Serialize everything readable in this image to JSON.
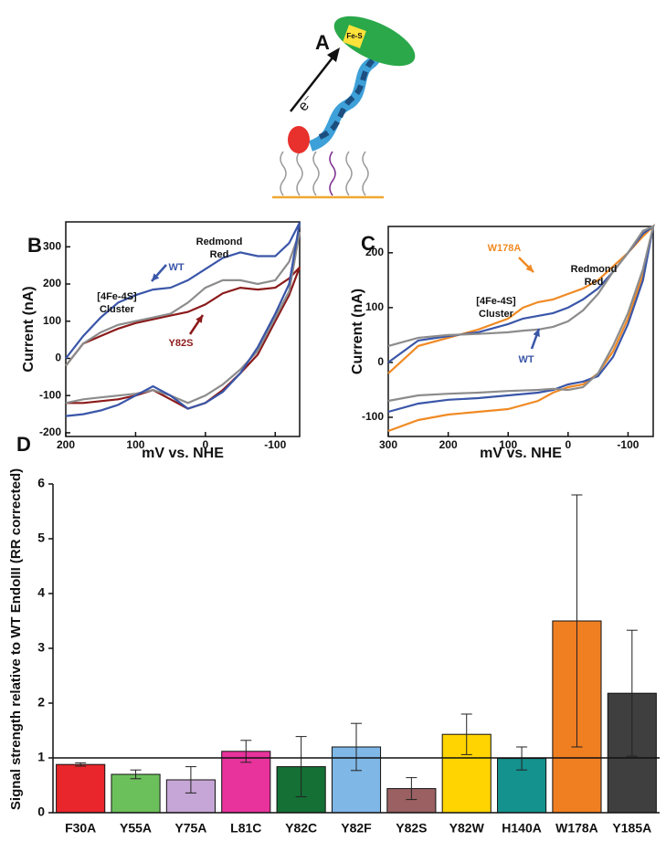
{
  "diagram": {
    "label": "A",
    "electron": "e⁻",
    "cluster": "Fe-S"
  },
  "chart_data": [
    {
      "type": "line",
      "panel_label": "B",
      "x_label": "mV vs. NHE",
      "y_label": "Current (nA)",
      "x": [
        200,
        175,
        150,
        125,
        100,
        75,
        50,
        25,
        0,
        -25,
        -50,
        -75,
        -100,
        -120,
        -135,
        -120,
        -100,
        -75,
        -50,
        -25,
        0,
        25,
        50,
        75,
        100,
        125,
        150,
        175,
        200
      ],
      "xlim": [
        200,
        -135
      ],
      "xticks": [
        200,
        100,
        0,
        -100
      ],
      "ylim": [
        -210,
        367
      ],
      "yticks": [
        -200,
        -100,
        0,
        100,
        200,
        300
      ],
      "series": [
        {
          "name": "Y82S",
          "color": "#8b1a1a",
          "values": [
            -20,
            40,
            60,
            80,
            95,
            105,
            115,
            125,
            145,
            175,
            190,
            185,
            190,
            215,
            245,
            170,
            100,
            10,
            -40,
            -85,
            -120,
            -135,
            -110,
            -85,
            -100,
            -110,
            -115,
            -120,
            -120
          ]
        },
        {
          "name": "Gray",
          "color": "#8c8c8c",
          "values": [
            -20,
            40,
            70,
            90,
            100,
            110,
            120,
            150,
            190,
            210,
            210,
            200,
            210,
            260,
            340,
            180,
            110,
            20,
            -30,
            -70,
            -100,
            -120,
            -100,
            -85,
            -95,
            -100,
            -105,
            -110,
            -120
          ]
        },
        {
          "name": "WT",
          "color": "#3a56a8",
          "values": [
            0,
            60,
            110,
            150,
            170,
            185,
            190,
            210,
            240,
            270,
            285,
            275,
            275,
            310,
            365,
            200,
            120,
            30,
            -40,
            -90,
            -120,
            -135,
            -100,
            -75,
            -100,
            -125,
            -140,
            -150,
            -155
          ]
        }
      ],
      "annotations": [
        {
          "lines": [
            "Redmond",
            "Red"
          ]
        },
        {
          "lines": [
            "WT"
          ],
          "color": "#3a56a8"
        },
        {
          "lines": [
            "[4Fe-4S]",
            "Cluster"
          ]
        },
        {
          "lines": [
            "Y82S"
          ],
          "color": "#8b1a1a"
        }
      ]
    },
    {
      "type": "line",
      "panel_label": "C",
      "x_label": "mV vs. NHE",
      "y_label": "Current (nA)",
      "x": [
        300,
        250,
        200,
        150,
        100,
        75,
        50,
        25,
        0,
        -25,
        -50,
        -75,
        -100,
        -125,
        -142,
        -125,
        -100,
        -75,
        -50,
        -25,
        0,
        25,
        50,
        100,
        150,
        200,
        250,
        300
      ],
      "xlim": [
        300,
        -142
      ],
      "xticks": [
        300,
        200,
        100,
        0,
        -100
      ],
      "ylim": [
        -135,
        248
      ],
      "yticks": [
        -100,
        0,
        100,
        200
      ],
      "series": [
        {
          "name": "W178A",
          "color": "#f08a24",
          "values": [
            -20,
            30,
            45,
            60,
            80,
            100,
            110,
            115,
            125,
            135,
            150,
            175,
            200,
            230,
            248,
            160,
            80,
            20,
            -20,
            -40,
            -45,
            -55,
            -70,
            -85,
            -90,
            -95,
            -105,
            -125
          ]
        },
        {
          "name": "WT",
          "color": "#3a56a8",
          "values": [
            0,
            40,
            48,
            55,
            70,
            80,
            85,
            90,
            100,
            115,
            135,
            165,
            200,
            235,
            248,
            150,
            70,
            10,
            -25,
            -35,
            -40,
            -50,
            -55,
            -60,
            -65,
            -68,
            -75,
            -90
          ]
        },
        {
          "name": "Gray",
          "color": "#8c8c8c",
          "values": [
            30,
            45,
            50,
            52,
            55,
            58,
            60,
            65,
            75,
            95,
            125,
            165,
            200,
            240,
            248,
            170,
            90,
            30,
            -20,
            -45,
            -50,
            -48,
            -50,
            -52,
            -55,
            -57,
            -60,
            -70
          ]
        }
      ],
      "annotations": [
        {
          "lines": [
            "W178A"
          ],
          "color": "#f08a24"
        },
        {
          "lines": [
            "Redmond",
            "Red"
          ]
        },
        {
          "lines": [
            "[4Fe-4S]",
            "Cluster"
          ]
        },
        {
          "lines": [
            "WT"
          ],
          "color": "#3a56a8"
        }
      ]
    },
    {
      "type": "bar",
      "panel_label": "D",
      "y_label": "Signal strength relative to WT EndoIII (RR corrected)",
      "categories": [
        "F30A",
        "Y55A",
        "Y75A",
        "L81C",
        "Y82C",
        "Y82F",
        "Y82S",
        "Y82W",
        "H140A",
        "W178A",
        "Y185A"
      ],
      "values": [
        0.88,
        0.7,
        0.6,
        1.12,
        0.84,
        1.2,
        0.44,
        1.43,
        0.99,
        3.5,
        2.18
      ],
      "errors": [
        0.03,
        0.08,
        0.24,
        0.2,
        0.55,
        0.43,
        0.2,
        0.37,
        0.21,
        2.3,
        1.15
      ],
      "colors": [
        "#e8262c",
        "#6cc05c",
        "#c6a6d6",
        "#e8339c",
        "#157036",
        "#7fb7e6",
        "#9a6062",
        "#ffd400",
        "#14928e",
        "#f07f22",
        "#3f3f3f"
      ],
      "ylim": [
        0,
        6
      ],
      "yticks": [
        0,
        1,
        2,
        3,
        4,
        5,
        6
      ],
      "reference_line": 1
    }
  ]
}
